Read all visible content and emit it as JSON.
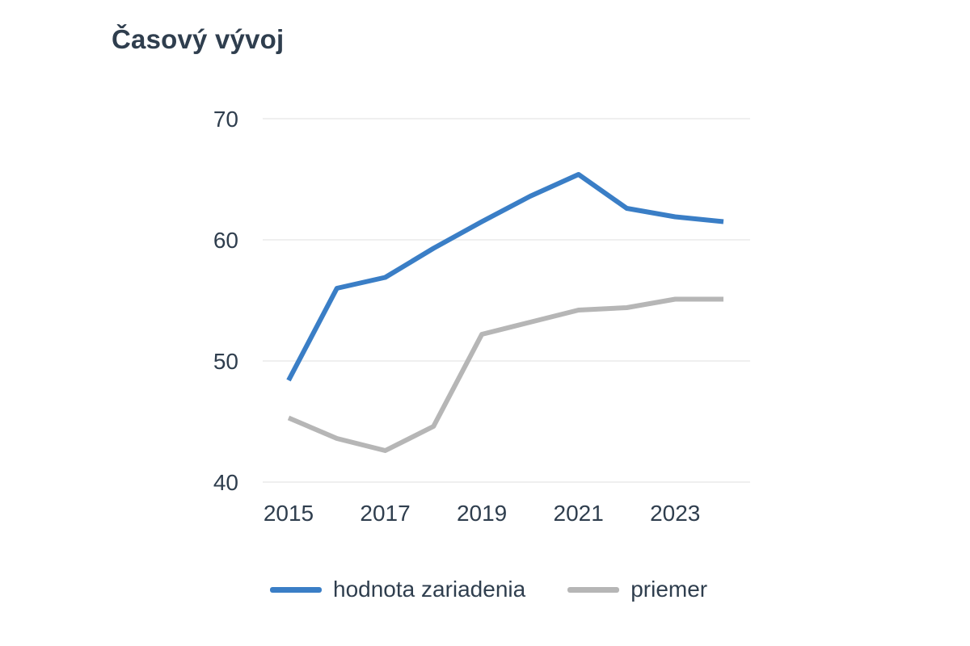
{
  "chart_data": {
    "type": "line",
    "title": "Časový vývoj",
    "xlabel": "",
    "ylabel": "",
    "x": [
      2015,
      2016,
      2017,
      2018,
      2019,
      2020,
      2021,
      2022,
      2023,
      2024
    ],
    "x_ticks": [
      "2015",
      "2017",
      "2019",
      "2021",
      "2023"
    ],
    "y_ticks": [
      40,
      50,
      60,
      70
    ],
    "ylim": [
      40,
      70
    ],
    "xlim": [
      2015,
      2024
    ],
    "grid": true,
    "legend_position": "bottom",
    "series": [
      {
        "name": "hodnota zariadenia",
        "color": "#3a7ec6",
        "values": [
          48.4,
          56.0,
          56.9,
          59.3,
          61.5,
          63.6,
          65.4,
          62.6,
          61.9,
          61.5
        ]
      },
      {
        "name": "priemer",
        "color": "#b6b6b6",
        "values": [
          45.3,
          43.6,
          42.6,
          44.6,
          52.2,
          53.2,
          54.2,
          54.4,
          55.1,
          55.1
        ]
      }
    ]
  }
}
